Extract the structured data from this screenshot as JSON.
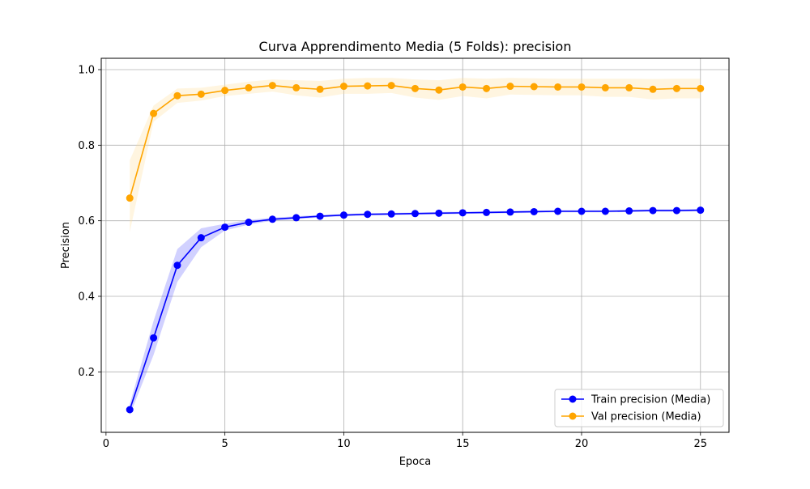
{
  "chart_data": {
    "type": "line",
    "title": "Curva Apprendimento Media (5 Folds): precision",
    "xlabel": "Epoca",
    "ylabel": "Precision",
    "xlim": [
      -0.2,
      26.2
    ],
    "ylim": [
      0.04,
      1.03
    ],
    "xticks": [
      0,
      5,
      10,
      15,
      20,
      25
    ],
    "yticks": [
      0.2,
      0.4,
      0.6,
      0.8,
      1.0
    ],
    "xtick_labels": [
      "0",
      "5",
      "10",
      "15",
      "20",
      "25"
    ],
    "ytick_labels": [
      "0.2",
      "0.4",
      "0.6",
      "0.8",
      "1.0"
    ],
    "grid": true,
    "legend_position": "bottom-right",
    "x": [
      1,
      2,
      3,
      4,
      5,
      6,
      7,
      8,
      9,
      10,
      11,
      12,
      13,
      14,
      15,
      16,
      17,
      18,
      19,
      20,
      21,
      22,
      23,
      24,
      25
    ],
    "series": [
      {
        "name": "Train precision (Media)",
        "color": "#0000ff",
        "band_color": "#6666ff",
        "values": [
          0.1,
          0.29,
          0.482,
          0.555,
          0.583,
          0.596,
          0.604,
          0.608,
          0.612,
          0.615,
          0.617,
          0.618,
          0.619,
          0.62,
          0.621,
          0.622,
          0.623,
          0.624,
          0.625,
          0.625,
          0.625,
          0.626,
          0.627,
          0.627,
          0.628
        ],
        "upper": [
          0.115,
          0.335,
          0.525,
          0.58,
          0.592,
          0.602,
          0.608,
          0.612,
          0.615,
          0.618,
          0.62,
          0.621,
          0.622,
          0.623,
          0.624,
          0.625,
          0.626,
          0.627,
          0.628,
          0.628,
          0.628,
          0.629,
          0.63,
          0.63,
          0.631
        ],
        "lower": [
          0.085,
          0.245,
          0.438,
          0.53,
          0.574,
          0.59,
          0.6,
          0.604,
          0.609,
          0.612,
          0.614,
          0.615,
          0.616,
          0.617,
          0.618,
          0.619,
          0.62,
          0.621,
          0.622,
          0.622,
          0.622,
          0.623,
          0.624,
          0.624,
          0.625
        ]
      },
      {
        "name": "Val precision (Media)",
        "color": "#ffa500",
        "band_color": "#ffdd99",
        "values": [
          0.66,
          0.884,
          0.931,
          0.935,
          0.945,
          0.952,
          0.958,
          0.952,
          0.948,
          0.956,
          0.957,
          0.958,
          0.95,
          0.946,
          0.954,
          0.95,
          0.956,
          0.955,
          0.954,
          0.954,
          0.952,
          0.952,
          0.948,
          0.95,
          0.95
        ],
        "upper": [
          0.76,
          0.905,
          0.95,
          0.952,
          0.96,
          0.968,
          0.974,
          0.972,
          0.97,
          0.976,
          0.978,
          0.978,
          0.974,
          0.972,
          0.978,
          0.976,
          0.978,
          0.977,
          0.976,
          0.976,
          0.976,
          0.976,
          0.975,
          0.976,
          0.976
        ],
        "lower": [
          0.57,
          0.862,
          0.912,
          0.918,
          0.93,
          0.936,
          0.942,
          0.932,
          0.926,
          0.936,
          0.936,
          0.938,
          0.926,
          0.92,
          0.93,
          0.924,
          0.934,
          0.933,
          0.932,
          0.932,
          0.928,
          0.928,
          0.921,
          0.924,
          0.924
        ]
      }
    ]
  }
}
